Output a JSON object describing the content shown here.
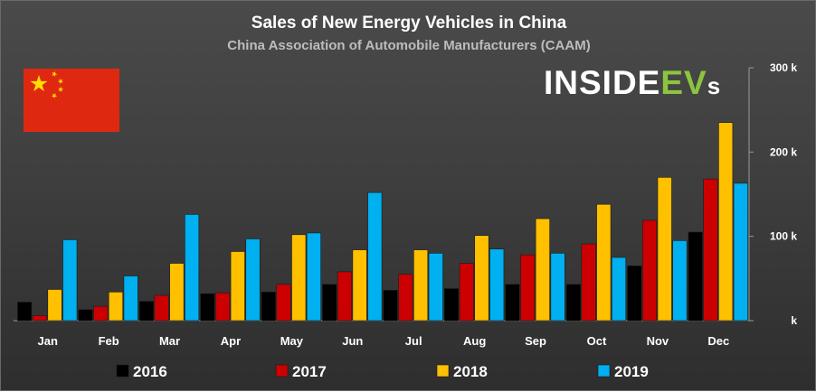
{
  "chart_data": {
    "type": "bar",
    "title": "Sales of New Energy Vehicles in China",
    "subtitle": "China Association of Automobile Manufacturers (CAAM)",
    "categories": [
      "Jan",
      "Feb",
      "Mar",
      "Apr",
      "May",
      "Jun",
      "Jul",
      "Aug",
      "Sep",
      "Oct",
      "Nov",
      "Dec"
    ],
    "series": [
      {
        "name": "2016",
        "color": "#000000",
        "values": [
          22,
          13,
          23,
          32,
          34,
          43,
          36,
          38,
          43,
          43,
          65,
          105
        ]
      },
      {
        "name": "2017",
        "color": "#cc0000",
        "values": [
          6,
          17,
          30,
          33,
          43,
          58,
          55,
          68,
          78,
          91,
          119,
          168
        ]
      },
      {
        "name": "2018",
        "color": "#ffc000",
        "values": [
          37,
          34,
          68,
          82,
          102,
          84,
          84,
          101,
          121,
          138,
          170,
          235
        ]
      },
      {
        "name": "2019",
        "color": "#00b0f0",
        "values": [
          96,
          53,
          126,
          97,
          104,
          152,
          80,
          85,
          80,
          75,
          95,
          163
        ]
      }
    ],
    "y_ticks": [
      {
        "value": 0,
        "label": "k"
      },
      {
        "value": 100,
        "label": "100 k"
      },
      {
        "value": 200,
        "label": "200 k"
      },
      {
        "value": 300,
        "label": "300 k"
      }
    ],
    "ylim": [
      0,
      300
    ],
    "grid": false,
    "legend": "bottom"
  },
  "branding": {
    "logo_text_inside": "INSIDE",
    "logo_text_evs": "EV",
    "logo_text_s": "s",
    "flag": "china-flag",
    "flag_color": "#de2910",
    "star_color": "#ffde00"
  }
}
